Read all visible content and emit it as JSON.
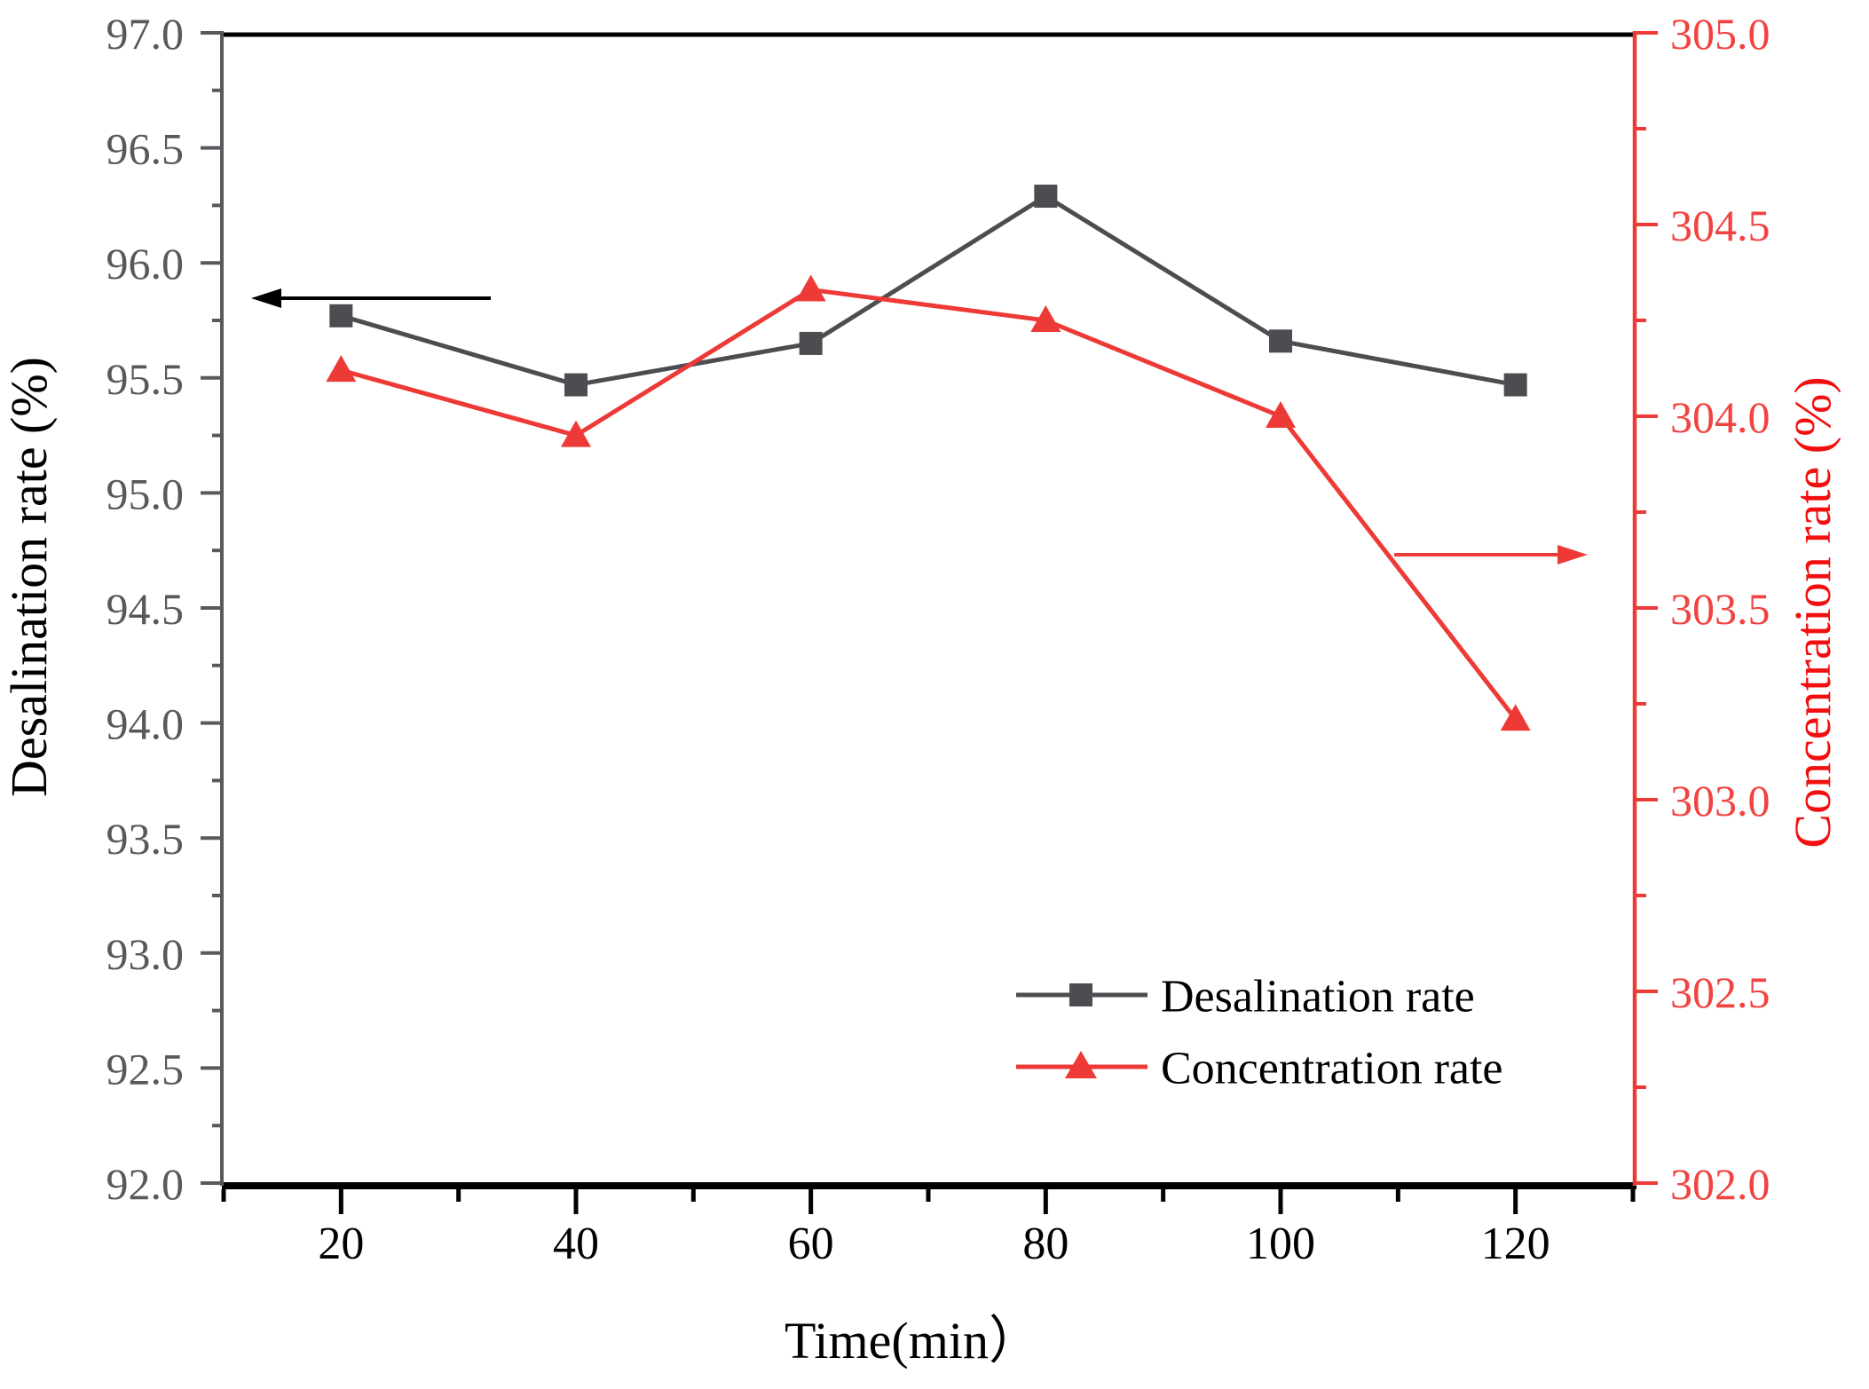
{
  "chart_data": {
    "type": "line",
    "x": [
      20,
      40,
      60,
      80,
      100,
      120
    ],
    "xlabel": "Time(min）",
    "x_axis": {
      "min": 10,
      "max": 130,
      "major_step": 20,
      "minor_step": 10,
      "tick_labels": [
        "20",
        "40",
        "60",
        "80",
        "100",
        "120"
      ]
    },
    "left_axis": {
      "label": "Desalination rate (%)",
      "min": 92.0,
      "max": 97.0,
      "major_step": 0.5,
      "minor_step": 0.25,
      "tick_labels": [
        "92.0",
        "92.5",
        "93.0",
        "93.5",
        "94.0",
        "94.5",
        "95.0",
        "95.5",
        "96.0",
        "96.5",
        "97.0"
      ]
    },
    "right_axis": {
      "label": "Concentration rate (%)",
      "min": 302.0,
      "max": 305.0,
      "major_step": 0.5,
      "minor_step": 0.25,
      "tick_labels": [
        "302.0",
        "302.5",
        "303.0",
        "303.5",
        "304.0",
        "304.5",
        "305.0"
      ]
    },
    "series": [
      {
        "name": "Desalination rate",
        "axis": "left",
        "marker": "square",
        "values": [
          95.77,
          95.47,
          95.65,
          96.29,
          95.66,
          95.47
        ]
      },
      {
        "name": "Concentration rate",
        "axis": "right",
        "marker": "triangle",
        "values": [
          304.12,
          303.95,
          304.33,
          304.25,
          304.0,
          303.21
        ]
      }
    ],
    "legend": {
      "position": "lower right",
      "entries": [
        "Desalination rate",
        "Concentration rate"
      ]
    },
    "annotations": [
      {
        "name": "left-axis-arrow",
        "direction": "left",
        "meaning": "Desalination rate series read on left axis"
      },
      {
        "name": "right-axis-arrow",
        "direction": "right",
        "meaning": "Concentration rate series read on right axis"
      }
    ],
    "grid": false
  },
  "colors": {
    "background": "#ffffff",
    "black": "#000000",
    "series_gray": "#4d4c50",
    "axis_gray": "#59585c",
    "red": "#ee3a37",
    "red_tick_label": "#f24340",
    "red_axis_title": "#f20f0f"
  }
}
